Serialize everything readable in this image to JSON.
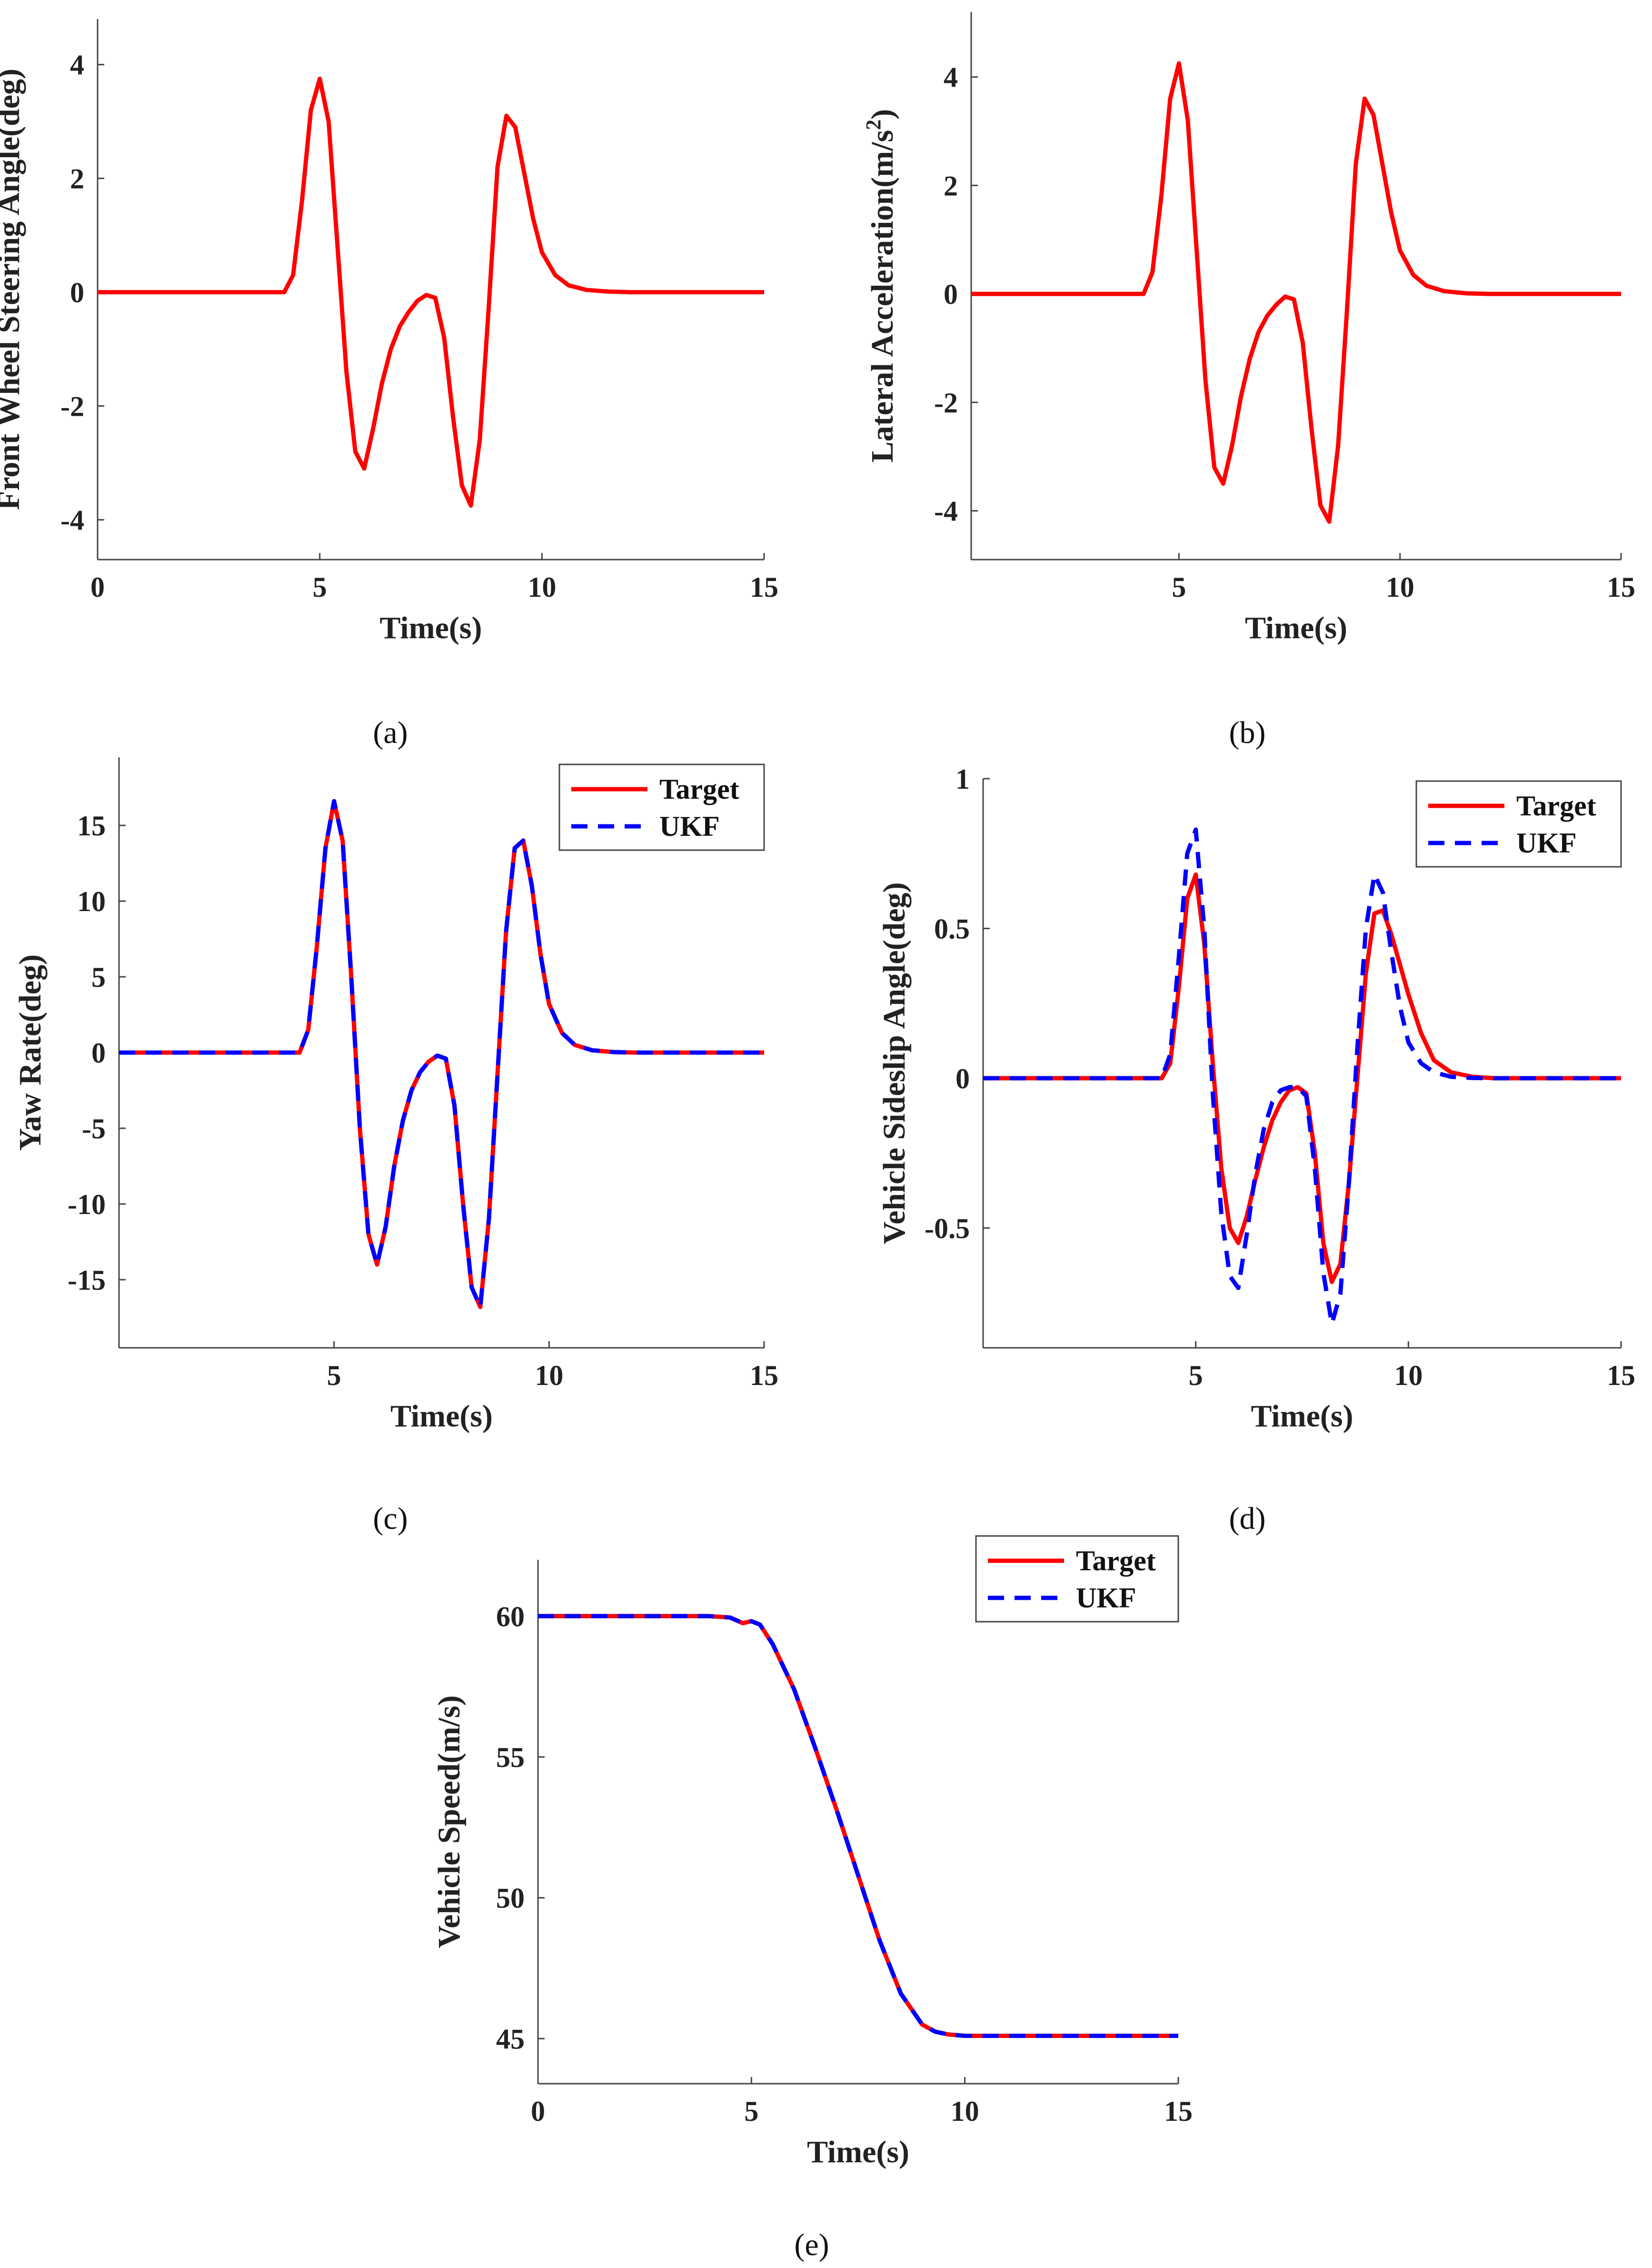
{
  "figure": {
    "description_captions": [
      "(a)",
      "(b)",
      "(c)",
      "(d)",
      "(e)"
    ]
  },
  "chart_data": [
    {
      "id": "a",
      "type": "line",
      "caption": "(a)",
      "xlabel": "Time(s)",
      "ylabel": "Front Wheel Steering Angle(deg)",
      "ylabel_sup": "",
      "ylabel_tail": "",
      "xlim": [
        0,
        15
      ],
      "ylim": [
        -4.7,
        4.8
      ],
      "xticks": [
        0,
        5,
        10,
        15
      ],
      "yticks": [
        -4,
        -2,
        0,
        2,
        4
      ],
      "legend": [],
      "series": [
        {
          "name": "Front wheel steering angle",
          "color": "#ff0000",
          "dash": "solid",
          "x": [
            0,
            4.2,
            4.4,
            4.6,
            4.8,
            5.0,
            5.2,
            5.4,
            5.6,
            5.8,
            6.0,
            6.2,
            6.4,
            6.6,
            6.8,
            7.0,
            7.2,
            7.4,
            7.6,
            7.8,
            8.0,
            8.2,
            8.4,
            8.6,
            8.8,
            9.0,
            9.2,
            9.4,
            9.6,
            9.8,
            10.0,
            10.3,
            10.6,
            11.0,
            11.5,
            12,
            15
          ],
          "y": [
            0,
            0,
            0.3,
            1.6,
            3.2,
            3.75,
            3.0,
            0.8,
            -1.4,
            -2.8,
            -3.1,
            -2.4,
            -1.6,
            -1.0,
            -0.6,
            -0.35,
            -0.15,
            -0.05,
            -0.1,
            -0.8,
            -2.2,
            -3.4,
            -3.75,
            -2.6,
            -0.3,
            2.2,
            3.1,
            2.9,
            2.1,
            1.3,
            0.7,
            0.3,
            0.12,
            0.04,
            0.01,
            0,
            0
          ]
        }
      ]
    },
    {
      "id": "b",
      "type": "line",
      "caption": "(b)",
      "xlabel": "Time(s)",
      "ylabel": "Lateral Acceleration(m/s",
      "ylabel_sup": "2",
      "ylabel_tail": ")",
      "xlim": [
        0.3,
        15
      ],
      "ylim": [
        -4.9,
        5.2
      ],
      "xticks": [
        5,
        10,
        15
      ],
      "yticks": [
        -4,
        -2,
        0,
        2,
        4
      ],
      "legend": [],
      "series": [
        {
          "name": "Lateral acceleration",
          "color": "#ff0000",
          "dash": "solid",
          "x": [
            0.3,
            4.2,
            4.4,
            4.6,
            4.8,
            5.0,
            5.2,
            5.4,
            5.6,
            5.8,
            6.0,
            6.2,
            6.4,
            6.6,
            6.8,
            7.0,
            7.2,
            7.4,
            7.6,
            7.8,
            8.0,
            8.2,
            8.4,
            8.6,
            8.8,
            9.0,
            9.2,
            9.4,
            9.6,
            9.8,
            10.0,
            10.3,
            10.6,
            11.0,
            11.5,
            12,
            15
          ],
          "y": [
            0,
            0,
            0.4,
            1.8,
            3.6,
            4.25,
            3.2,
            0.8,
            -1.6,
            -3.2,
            -3.5,
            -2.8,
            -1.9,
            -1.2,
            -0.7,
            -0.4,
            -0.2,
            -0.05,
            -0.1,
            -0.9,
            -2.5,
            -3.9,
            -4.2,
            -2.8,
            -0.3,
            2.4,
            3.6,
            3.3,
            2.4,
            1.5,
            0.8,
            0.35,
            0.15,
            0.05,
            0.01,
            0,
            0
          ]
        }
      ]
    },
    {
      "id": "c",
      "type": "line",
      "caption": "(c)",
      "xlabel": "Time(s)",
      "ylabel": "Yaw Rate(deg)",
      "ylabel_sup": "",
      "ylabel_tail": "",
      "xlim": [
        0,
        15
      ],
      "ylim": [
        -19.5,
        19.5
      ],
      "xticks": [
        5,
        10,
        15
      ],
      "yticks": [
        -15,
        -10,
        -5,
        0,
        5,
        10,
        15
      ],
      "legend": [
        {
          "label": "Target",
          "color": "#ff0000",
          "dash": "solid"
        },
        {
          "label": "UKF",
          "color": "#0000ff",
          "dash": "dashed"
        }
      ],
      "series": [
        {
          "name": "Target",
          "color": "#ff0000",
          "dash": "solid",
          "x": [
            0,
            4.2,
            4.4,
            4.6,
            4.8,
            5.0,
            5.2,
            5.4,
            5.6,
            5.8,
            6.0,
            6.2,
            6.4,
            6.6,
            6.8,
            7.0,
            7.2,
            7.4,
            7.6,
            7.8,
            8.0,
            8.2,
            8.4,
            8.6,
            8.8,
            9.0,
            9.2,
            9.4,
            9.6,
            9.8,
            10.0,
            10.3,
            10.6,
            11.0,
            11.5,
            12,
            15
          ],
          "y": [
            0,
            0,
            1.5,
            7,
            13.5,
            16.6,
            14,
            5,
            -5,
            -12,
            -14,
            -11.5,
            -7.5,
            -4.5,
            -2.5,
            -1.3,
            -0.6,
            -0.2,
            -0.4,
            -3.5,
            -10,
            -15.5,
            -16.8,
            -11,
            -1.5,
            8,
            13.5,
            14,
            11,
            6.5,
            3.2,
            1.3,
            0.5,
            0.15,
            0.03,
            0,
            0
          ]
        },
        {
          "name": "UKF",
          "color": "#0000ff",
          "dash": "dashed",
          "x": [
            0,
            4.2,
            4.4,
            4.6,
            4.8,
            5.0,
            5.2,
            5.4,
            5.6,
            5.8,
            6.0,
            6.2,
            6.4,
            6.6,
            6.8,
            7.0,
            7.2,
            7.4,
            7.6,
            7.8,
            8.0,
            8.2,
            8.4,
            8.6,
            8.8,
            9.0,
            9.2,
            9.4,
            9.6,
            9.8,
            10.0,
            10.3,
            10.6,
            11.0,
            11.5,
            12,
            15
          ],
          "y": [
            0,
            0,
            1.5,
            7,
            13.5,
            16.6,
            14,
            5,
            -5,
            -12,
            -14,
            -11.5,
            -7.5,
            -4.5,
            -2.5,
            -1.3,
            -0.6,
            -0.2,
            -0.4,
            -3.5,
            -10,
            -15.5,
            -16.8,
            -11,
            -1.5,
            8,
            13.5,
            14,
            11,
            6.5,
            3.2,
            1.3,
            0.5,
            0.15,
            0.03,
            0,
            0
          ]
        }
      ]
    },
    {
      "id": "d",
      "type": "line",
      "caption": "(d)",
      "xlabel": "Time(s)",
      "ylabel": "Vehicle Sideslip Angle(deg)",
      "ylabel_sup": "",
      "ylabel_tail": "",
      "xlim": [
        0,
        15
      ],
      "ylim": [
        -0.9,
        1.0
      ],
      "xticks": [
        5,
        10,
        15
      ],
      "yticks": [
        -0.5,
        0,
        0.5,
        1
      ],
      "legend": [
        {
          "label": "Target",
          "color": "#ff0000",
          "dash": "solid"
        },
        {
          "label": "UKF",
          "color": "#0000ff",
          "dash": "dashed"
        }
      ],
      "series": [
        {
          "name": "Target",
          "color": "#ff0000",
          "dash": "solid",
          "x": [
            0,
            4.2,
            4.4,
            4.6,
            4.8,
            5.0,
            5.2,
            5.4,
            5.6,
            5.8,
            6.0,
            6.2,
            6.4,
            6.6,
            6.8,
            7.0,
            7.2,
            7.4,
            7.6,
            7.8,
            8.0,
            8.2,
            8.4,
            8.6,
            8.8,
            9.0,
            9.2,
            9.4,
            9.6,
            9.8,
            10.0,
            10.3,
            10.6,
            11.0,
            11.5,
            12,
            15
          ],
          "y": [
            0,
            0,
            0.05,
            0.3,
            0.6,
            0.68,
            0.45,
            0.05,
            -0.3,
            -0.5,
            -0.55,
            -0.46,
            -0.34,
            -0.23,
            -0.14,
            -0.08,
            -0.04,
            -0.03,
            -0.05,
            -0.25,
            -0.55,
            -0.68,
            -0.62,
            -0.35,
            0.0,
            0.35,
            0.55,
            0.56,
            0.48,
            0.38,
            0.28,
            0.15,
            0.06,
            0.02,
            0.005,
            0,
            0
          ]
        },
        {
          "name": "UKF",
          "color": "#0000ff",
          "dash": "dashed",
          "x": [
            0,
            4.2,
            4.4,
            4.6,
            4.8,
            5.0,
            5.2,
            5.4,
            5.6,
            5.8,
            6.0,
            6.2,
            6.4,
            6.6,
            6.8,
            7.0,
            7.2,
            7.4,
            7.6,
            7.8,
            8.0,
            8.2,
            8.4,
            8.6,
            8.8,
            9.0,
            9.2,
            9.4,
            9.6,
            9.8,
            10.0,
            10.3,
            10.6,
            11.0,
            11.5,
            12,
            15
          ],
          "y": [
            0,
            0,
            0.08,
            0.4,
            0.75,
            0.83,
            0.5,
            -0.05,
            -0.45,
            -0.66,
            -0.7,
            -0.52,
            -0.32,
            -0.17,
            -0.08,
            -0.04,
            -0.03,
            -0.03,
            -0.06,
            -0.3,
            -0.65,
            -0.82,
            -0.72,
            -0.35,
            0.1,
            0.5,
            0.68,
            0.62,
            0.42,
            0.24,
            0.12,
            0.05,
            0.02,
            0.005,
            0.001,
            0,
            0
          ]
        }
      ]
    },
    {
      "id": "e",
      "type": "line",
      "caption": "(e)",
      "xlabel": "Time(s)",
      "ylabel": "Vehicle Speed(m/s)",
      "ylabel_sup": "",
      "ylabel_tail": "",
      "xlim": [
        0,
        15
      ],
      "ylim": [
        43.4,
        62.0
      ],
      "xticks": [
        0,
        5,
        10,
        15
      ],
      "yticks": [
        45,
        50,
        55,
        60
      ],
      "legend": [
        {
          "label": "Target",
          "color": "#ff0000",
          "dash": "solid"
        },
        {
          "label": "UKF",
          "color": "#0000ff",
          "dash": "dashed"
        }
      ],
      "series": [
        {
          "name": "Target",
          "color": "#ff0000",
          "dash": "solid",
          "x": [
            0,
            4,
            4.5,
            4.8,
            5.0,
            5.2,
            5.5,
            6.0,
            6.5,
            7.0,
            7.5,
            8.0,
            8.5,
            9.0,
            9.3,
            9.6,
            10,
            11,
            15
          ],
          "y": [
            60,
            60,
            59.95,
            59.75,
            59.82,
            59.7,
            59,
            57.4,
            55.3,
            53.1,
            50.8,
            48.5,
            46.6,
            45.5,
            45.25,
            45.15,
            45.1,
            45.1,
            45.1
          ]
        },
        {
          "name": "UKF",
          "color": "#0000ff",
          "dash": "dashed",
          "x": [
            0,
            4,
            4.5,
            4.8,
            5.0,
            5.2,
            5.5,
            6.0,
            6.5,
            7.0,
            7.5,
            8.0,
            8.5,
            9.0,
            9.3,
            9.6,
            10,
            11,
            15
          ],
          "y": [
            60,
            60,
            59.95,
            59.75,
            59.82,
            59.7,
            59,
            57.4,
            55.3,
            53.1,
            50.8,
            48.5,
            46.6,
            45.5,
            45.25,
            45.15,
            45.1,
            45.1,
            45.1
          ]
        }
      ]
    }
  ]
}
